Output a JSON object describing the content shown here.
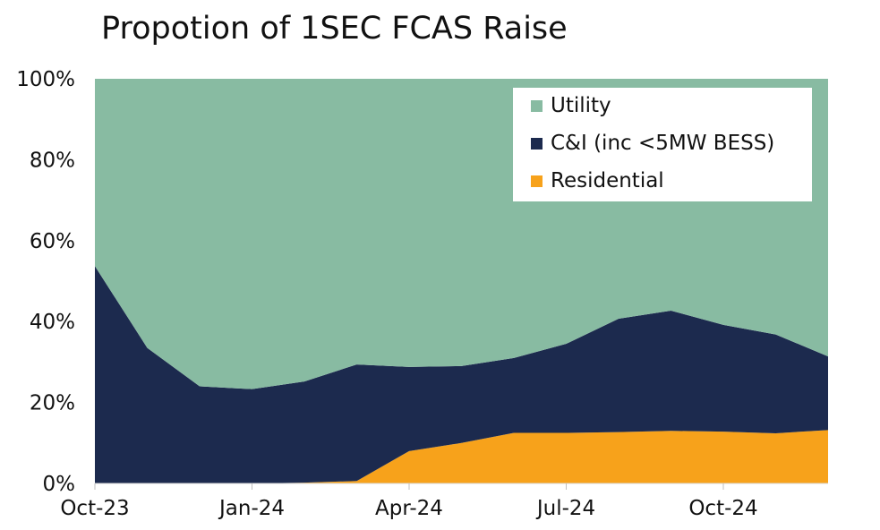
{
  "chart_data": {
    "type": "area",
    "stacked": true,
    "title": "Propotion of 1SEC FCAS Raise",
    "xlabel": "",
    "ylabel": "",
    "ylim": [
      0,
      100
    ],
    "y_ticks": [
      "0%",
      "20%",
      "40%",
      "60%",
      "80%",
      "100%"
    ],
    "x_ticks": [
      "Oct-23",
      "Jan-24",
      "Apr-24",
      "Jul-24",
      "Oct-24"
    ],
    "x": [
      "Oct-23",
      "Nov-23",
      "Dec-23",
      "Jan-24",
      "Feb-24",
      "Mar-24",
      "Apr-24",
      "May-24",
      "Jun-24",
      "Jul-24",
      "Aug-24",
      "Sep-24",
      "Oct-24",
      "Nov-24",
      "Dec-24"
    ],
    "series": [
      {
        "name": "Residential",
        "color": "#F7A21B",
        "values": [
          0,
          0,
          0,
          0,
          0.2,
          0.6,
          8,
          10,
          12.5,
          12.5,
          12.7,
          13,
          12.8,
          12.4,
          13.2
        ]
      },
      {
        "name": "C&I (inc <5MW BESS)",
        "color": "#1C2A4E",
        "values": [
          53.7,
          33.5,
          24,
          23.3,
          25,
          28.8,
          20.8,
          19,
          18.5,
          22,
          28,
          29.7,
          26.4,
          24.4,
          18.2
        ]
      },
      {
        "name": "Utility",
        "color": "#88BBA2",
        "values": [
          46.3,
          66.5,
          76,
          76.7,
          74.8,
          70.6,
          71.2,
          71,
          69,
          65.5,
          59.3,
          57.3,
          60.8,
          63.2,
          68.6
        ]
      }
    ],
    "legend": [
      "Utility",
      "C&I (inc <5MW BESS)",
      "Residential"
    ],
    "legend_position": "top-right",
    "grid": false
  }
}
